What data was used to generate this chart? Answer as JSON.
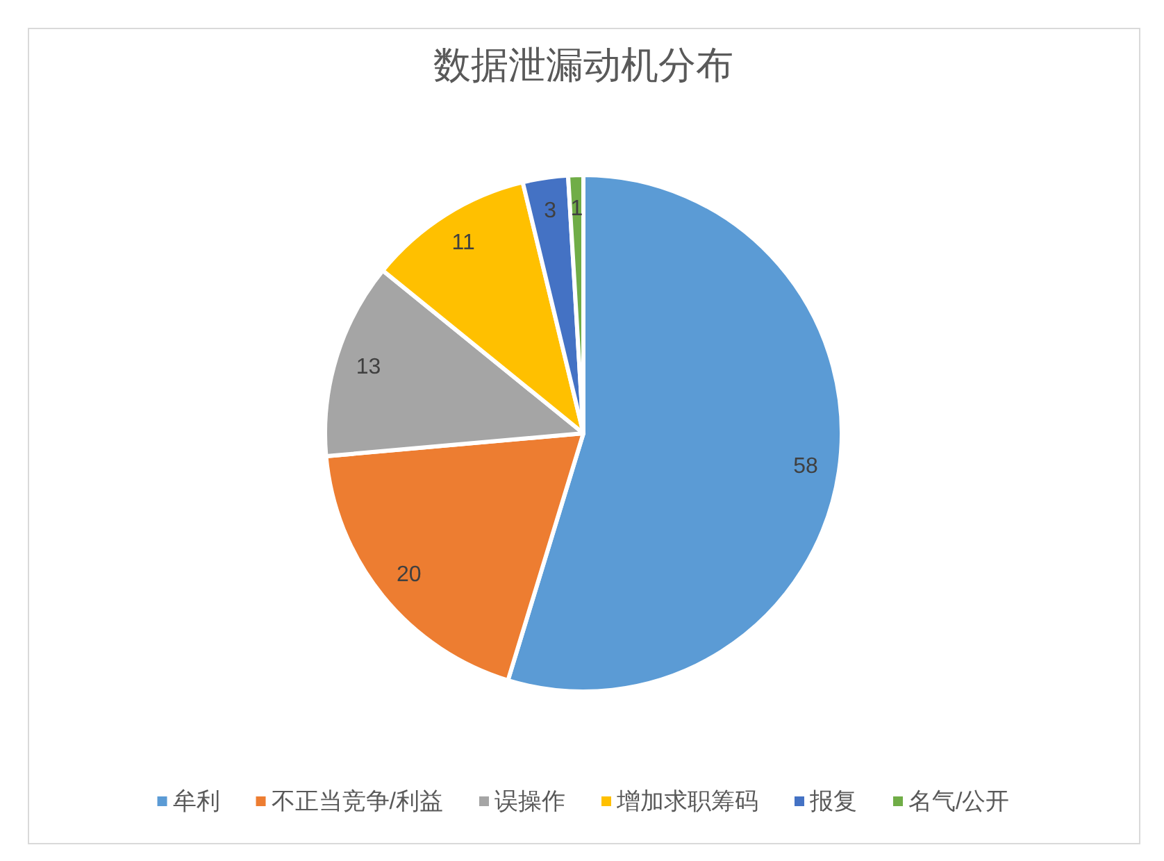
{
  "chart_data": {
    "type": "pie",
    "title": "数据泄漏动机分布",
    "categories": [
      "牟利",
      "不正当竞争/利益",
      "误操作",
      "增加求职筹码",
      "报复",
      "名气/公开"
    ],
    "values": [
      58,
      20,
      13,
      11,
      3,
      1
    ],
    "colors": [
      "#5b9bd5",
      "#ed7d31",
      "#a5a5a5",
      "#ffc000",
      "#4472c4",
      "#70ad47"
    ],
    "data_labels": true,
    "legend": "bottom"
  }
}
